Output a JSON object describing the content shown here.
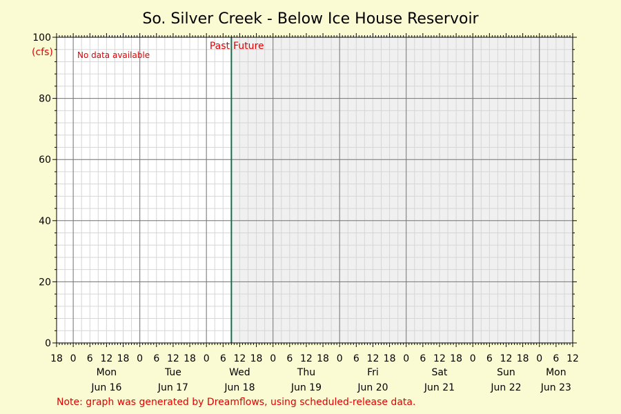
{
  "chart_data": {
    "type": "line",
    "title": "So. Silver Creek - Below Ice House Reservoir",
    "ylabel_unit": "(cfs)",
    "ylim": [
      0,
      100
    ],
    "y_ticks": [
      "0",
      "20",
      "40",
      "60",
      "80",
      "100"
    ],
    "series": [],
    "no_data_text": "No data available",
    "past_label": "Past",
    "future_label": "Future",
    "hour_ticks": [
      "18",
      "0",
      "6",
      "12",
      "18",
      "0",
      "6",
      "12",
      "18",
      "0",
      "6",
      "12",
      "18",
      "0",
      "6",
      "12",
      "18",
      "0",
      "6",
      "12",
      "18",
      "0",
      "6",
      "12",
      "18",
      "0",
      "6",
      "12",
      "18",
      "0",
      "6",
      "12"
    ],
    "day_names": [
      "Mon",
      "Tue",
      "Wed",
      "Thu",
      "Fri",
      "Sat",
      "Sun",
      "Mon"
    ],
    "day_dates": [
      "Jun 16",
      "Jun 17",
      "Jun 18",
      "Jun 19",
      "Jun 20",
      "Jun 21",
      "Jun 22",
      "Jun 23"
    ],
    "now": "Jun 18 9:00",
    "grid": true,
    "colors": {
      "background": "#fbfbd3",
      "plot_past": "#ffffff",
      "plot_future": "#f0f0f0",
      "now_line": "#1a6b4a",
      "annotation": "#e00000"
    }
  },
  "note": "Note: graph was generated by Dreamflows, using scheduled-release data."
}
